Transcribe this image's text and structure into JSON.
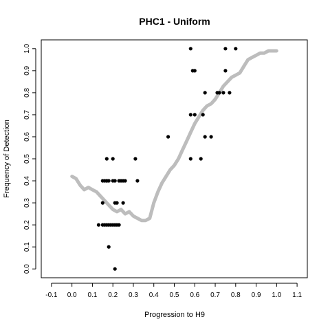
{
  "chart_data": {
    "type": "scatter",
    "title": "PHC1 - Uniform",
    "xlabel": "Progression to H9",
    "ylabel": "Frequency of Detection",
    "xlim": [
      -0.15,
      1.15
    ],
    "ylim": [
      -0.04,
      1.04
    ],
    "xticks": [
      -0.1,
      0.0,
      0.1,
      0.2,
      0.3,
      0.4,
      0.5,
      0.6,
      0.7,
      0.8,
      0.9,
      1.0,
      1.1
    ],
    "xtick_labels": [
      "-0.1",
      "0.0",
      "0.1",
      "0.2",
      "0.3",
      "0.4",
      "0.5",
      "0.6",
      "0.7",
      "0.8",
      "0.9",
      "1.0",
      "1.1"
    ],
    "yticks": [
      0.0,
      0.1,
      0.2,
      0.3,
      0.4,
      0.5,
      0.6,
      0.7,
      0.8,
      0.9,
      1.0
    ],
    "ytick_labels": [
      "0.0",
      "0.1",
      "0.2",
      "0.3",
      "0.4",
      "0.5",
      "0.6",
      "0.7",
      "0.8",
      "0.9",
      "1.0"
    ],
    "grid": false,
    "colors": {
      "points": "#000000",
      "smooth": "#bdbdbd"
    },
    "series": [
      {
        "kind": "points",
        "x": [
          0.13,
          0.15,
          0.16,
          0.17,
          0.18,
          0.19,
          0.2,
          0.21,
          0.22,
          0.23,
          0.15,
          0.16,
          0.17,
          0.18,
          0.2,
          0.21,
          0.23,
          0.24,
          0.25,
          0.26,
          0.32,
          0.17,
          0.2,
          0.31,
          0.47,
          0.58,
          0.59,
          0.6,
          0.63,
          0.65,
          0.68,
          0.64,
          0.58,
          0.6,
          0.65,
          0.71,
          0.72,
          0.74,
          0.77,
          0.75,
          0.58,
          0.75,
          0.8,
          0.15,
          0.21,
          0.22,
          0.25,
          0.18,
          0.17,
          0.21
        ],
        "y": [
          0.2,
          0.2,
          0.2,
          0.2,
          0.2,
          0.2,
          0.2,
          0.2,
          0.2,
          0.2,
          0.4,
          0.4,
          0.4,
          0.4,
          0.4,
          0.4,
          0.4,
          0.4,
          0.4,
          0.4,
          0.4,
          0.5,
          0.5,
          0.5,
          0.6,
          0.5,
          0.9,
          0.9,
          0.5,
          0.6,
          0.6,
          0.7,
          0.7,
          0.7,
          0.8,
          0.8,
          0.8,
          0.8,
          0.8,
          0.9,
          1.0,
          1.0,
          1.0,
          0.3,
          0.3,
          0.3,
          0.3,
          0.1,
          0.4,
          0.0
        ]
      },
      {
        "kind": "smooth",
        "x": [
          0.0,
          0.02,
          0.04,
          0.06,
          0.08,
          0.1,
          0.12,
          0.14,
          0.16,
          0.18,
          0.2,
          0.22,
          0.24,
          0.26,
          0.28,
          0.3,
          0.32,
          0.34,
          0.36,
          0.38,
          0.4,
          0.42,
          0.44,
          0.46,
          0.48,
          0.5,
          0.52,
          0.54,
          0.56,
          0.58,
          0.6,
          0.62,
          0.64,
          0.66,
          0.68,
          0.7,
          0.72,
          0.74,
          0.76,
          0.78,
          0.8,
          0.82,
          0.84,
          0.86,
          0.88,
          0.9,
          0.92,
          0.94,
          0.96,
          0.98,
          1.0
        ],
        "y": [
          0.42,
          0.41,
          0.38,
          0.36,
          0.37,
          0.36,
          0.35,
          0.33,
          0.31,
          0.29,
          0.27,
          0.26,
          0.27,
          0.25,
          0.26,
          0.24,
          0.23,
          0.22,
          0.22,
          0.23,
          0.3,
          0.35,
          0.39,
          0.42,
          0.45,
          0.47,
          0.5,
          0.54,
          0.58,
          0.62,
          0.66,
          0.69,
          0.72,
          0.74,
          0.75,
          0.77,
          0.8,
          0.83,
          0.85,
          0.87,
          0.88,
          0.89,
          0.92,
          0.95,
          0.96,
          0.97,
          0.98,
          0.98,
          0.99,
          0.99,
          0.99
        ]
      }
    ]
  }
}
